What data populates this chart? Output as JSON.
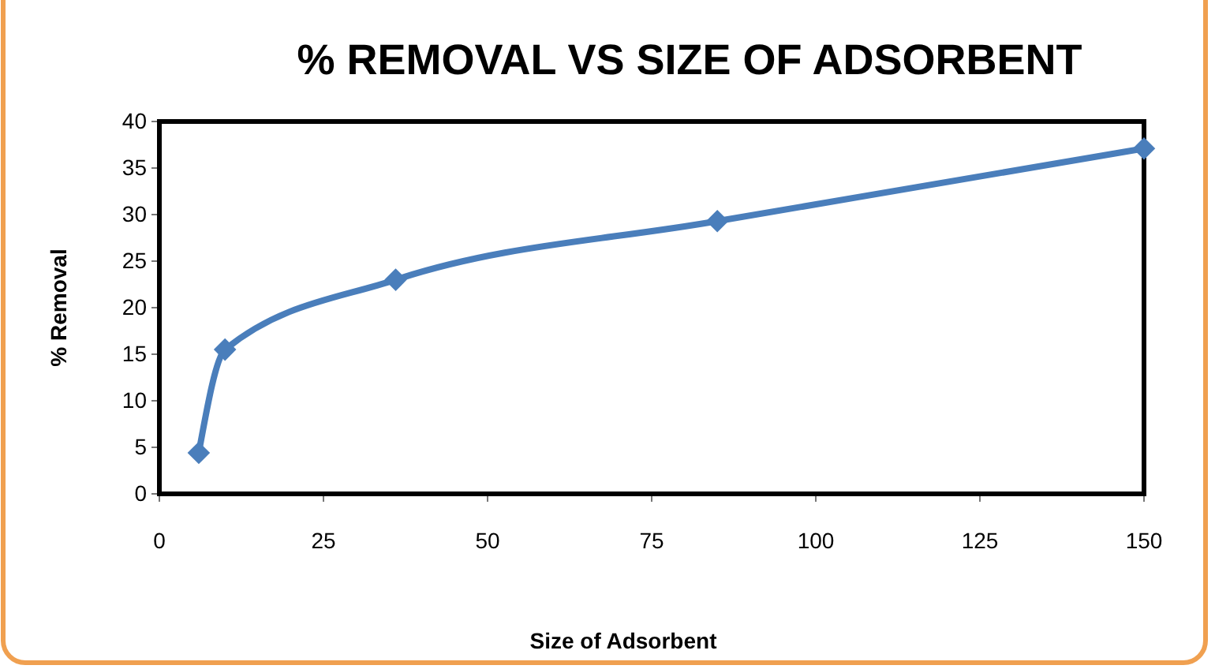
{
  "chart_data": {
    "type": "line",
    "title": "% REMOVAL VS SIZE OF ADSORBENT",
    "xlabel": "Size of Adsorbent",
    "ylabel": "% Removal",
    "x": [
      6,
      10,
      36,
      85,
      150
    ],
    "series": [
      {
        "color": "#4a7ebb",
        "values": [
          4.4,
          15.5,
          23,
          29.3,
          37.1
        ]
      }
    ],
    "xlim": [
      0,
      150
    ],
    "xticks": [
      0,
      25,
      50,
      75,
      100,
      125,
      150
    ],
    "ylim": [
      0,
      40
    ],
    "yticks": [
      0,
      5,
      10,
      15,
      20,
      25,
      30,
      35,
      40
    ],
    "marker": "diamond",
    "line_style": "solid"
  }
}
